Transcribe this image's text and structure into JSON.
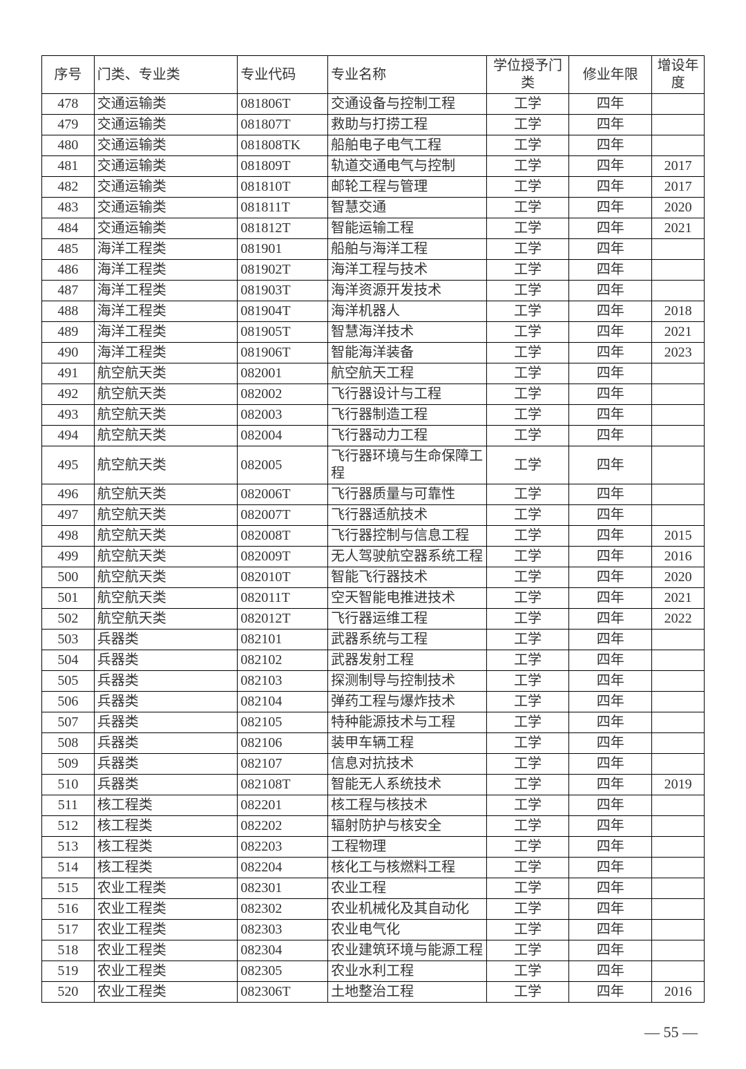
{
  "table": {
    "columns": [
      "序号",
      "门类、专业类",
      "专业代码",
      "专业名称",
      "学位授予门类",
      "修业年限",
      "增设年度"
    ],
    "rows": [
      [
        "478",
        "交通运输类",
        "081806T",
        "交通设备与控制工程",
        "工学",
        "四年",
        ""
      ],
      [
        "479",
        "交通运输类",
        "081807T",
        "救助与打捞工程",
        "工学",
        "四年",
        ""
      ],
      [
        "480",
        "交通运输类",
        "081808TK",
        "船舶电子电气工程",
        "工学",
        "四年",
        ""
      ],
      [
        "481",
        "交通运输类",
        "081809T",
        "轨道交通电气与控制",
        "工学",
        "四年",
        "2017"
      ],
      [
        "482",
        "交通运输类",
        "081810T",
        "邮轮工程与管理",
        "工学",
        "四年",
        "2017"
      ],
      [
        "483",
        "交通运输类",
        "081811T",
        "智慧交通",
        "工学",
        "四年",
        "2020"
      ],
      [
        "484",
        "交通运输类",
        "081812T",
        "智能运输工程",
        "工学",
        "四年",
        "2021"
      ],
      [
        "485",
        "海洋工程类",
        "081901",
        "船舶与海洋工程",
        "工学",
        "四年",
        ""
      ],
      [
        "486",
        "海洋工程类",
        "081902T",
        "海洋工程与技术",
        "工学",
        "四年",
        ""
      ],
      [
        "487",
        "海洋工程类",
        "081903T",
        "海洋资源开发技术",
        "工学",
        "四年",
        ""
      ],
      [
        "488",
        "海洋工程类",
        "081904T",
        "海洋机器人",
        "工学",
        "四年",
        "2018"
      ],
      [
        "489",
        "海洋工程类",
        "081905T",
        "智慧海洋技术",
        "工学",
        "四年",
        "2021"
      ],
      [
        "490",
        "海洋工程类",
        "081906T",
        "智能海洋装备",
        "工学",
        "四年",
        "2023"
      ],
      [
        "491",
        "航空航天类",
        "082001",
        "航空航天工程",
        "工学",
        "四年",
        ""
      ],
      [
        "492",
        "航空航天类",
        "082002",
        "飞行器设计与工程",
        "工学",
        "四年",
        ""
      ],
      [
        "493",
        "航空航天类",
        "082003",
        "飞行器制造工程",
        "工学",
        "四年",
        ""
      ],
      [
        "494",
        "航空航天类",
        "082004",
        "飞行器动力工程",
        "工学",
        "四年",
        ""
      ],
      [
        "495",
        "航空航天类",
        "082005",
        "飞行器环境与生命保障工程",
        "工学",
        "四年",
        ""
      ],
      [
        "496",
        "航空航天类",
        "082006T",
        "飞行器质量与可靠性",
        "工学",
        "四年",
        ""
      ],
      [
        "497",
        "航空航天类",
        "082007T",
        "飞行器适航技术",
        "工学",
        "四年",
        ""
      ],
      [
        "498",
        "航空航天类",
        "082008T",
        "飞行器控制与信息工程",
        "工学",
        "四年",
        "2015"
      ],
      [
        "499",
        "航空航天类",
        "082009T",
        "无人驾驶航空器系统工程",
        "工学",
        "四年",
        "2016"
      ],
      [
        "500",
        "航空航天类",
        "082010T",
        "智能飞行器技术",
        "工学",
        "四年",
        "2020"
      ],
      [
        "501",
        "航空航天类",
        "082011T",
        "空天智能电推进技术",
        "工学",
        "四年",
        "2021"
      ],
      [
        "502",
        "航空航天类",
        "082012T",
        "飞行器运维工程",
        "工学",
        "四年",
        "2022"
      ],
      [
        "503",
        "兵器类",
        "082101",
        "武器系统与工程",
        "工学",
        "四年",
        ""
      ],
      [
        "504",
        "兵器类",
        "082102",
        "武器发射工程",
        "工学",
        "四年",
        ""
      ],
      [
        "505",
        "兵器类",
        "082103",
        "探测制导与控制技术",
        "工学",
        "四年",
        ""
      ],
      [
        "506",
        "兵器类",
        "082104",
        "弹药工程与爆炸技术",
        "工学",
        "四年",
        ""
      ],
      [
        "507",
        "兵器类",
        "082105",
        "特种能源技术与工程",
        "工学",
        "四年",
        ""
      ],
      [
        "508",
        "兵器类",
        "082106",
        "装甲车辆工程",
        "工学",
        "四年",
        ""
      ],
      [
        "509",
        "兵器类",
        "082107",
        "信息对抗技术",
        "工学",
        "四年",
        ""
      ],
      [
        "510",
        "兵器类",
        "082108T",
        "智能无人系统技术",
        "工学",
        "四年",
        "2019"
      ],
      [
        "511",
        "核工程类",
        "082201",
        "核工程与核技术",
        "工学",
        "四年",
        ""
      ],
      [
        "512",
        "核工程类",
        "082202",
        "辐射防护与核安全",
        "工学",
        "四年",
        ""
      ],
      [
        "513",
        "核工程类",
        "082203",
        "工程物理",
        "工学",
        "四年",
        ""
      ],
      [
        "514",
        "核工程类",
        "082204",
        "核化工与核燃料工程",
        "工学",
        "四年",
        ""
      ],
      [
        "515",
        "农业工程类",
        "082301",
        "农业工程",
        "工学",
        "四年",
        ""
      ],
      [
        "516",
        "农业工程类",
        "082302",
        "农业机械化及其自动化",
        "工学",
        "四年",
        ""
      ],
      [
        "517",
        "农业工程类",
        "082303",
        "农业电气化",
        "工学",
        "四年",
        ""
      ],
      [
        "518",
        "农业工程类",
        "082304",
        "农业建筑环境与能源工程",
        "工学",
        "四年",
        ""
      ],
      [
        "519",
        "农业工程类",
        "082305",
        "农业水利工程",
        "工学",
        "四年",
        ""
      ],
      [
        "520",
        "农业工程类",
        "082306T",
        "土地整治工程",
        "工学",
        "四年",
        "2016"
      ]
    ]
  },
  "page_number": "— 55 —"
}
